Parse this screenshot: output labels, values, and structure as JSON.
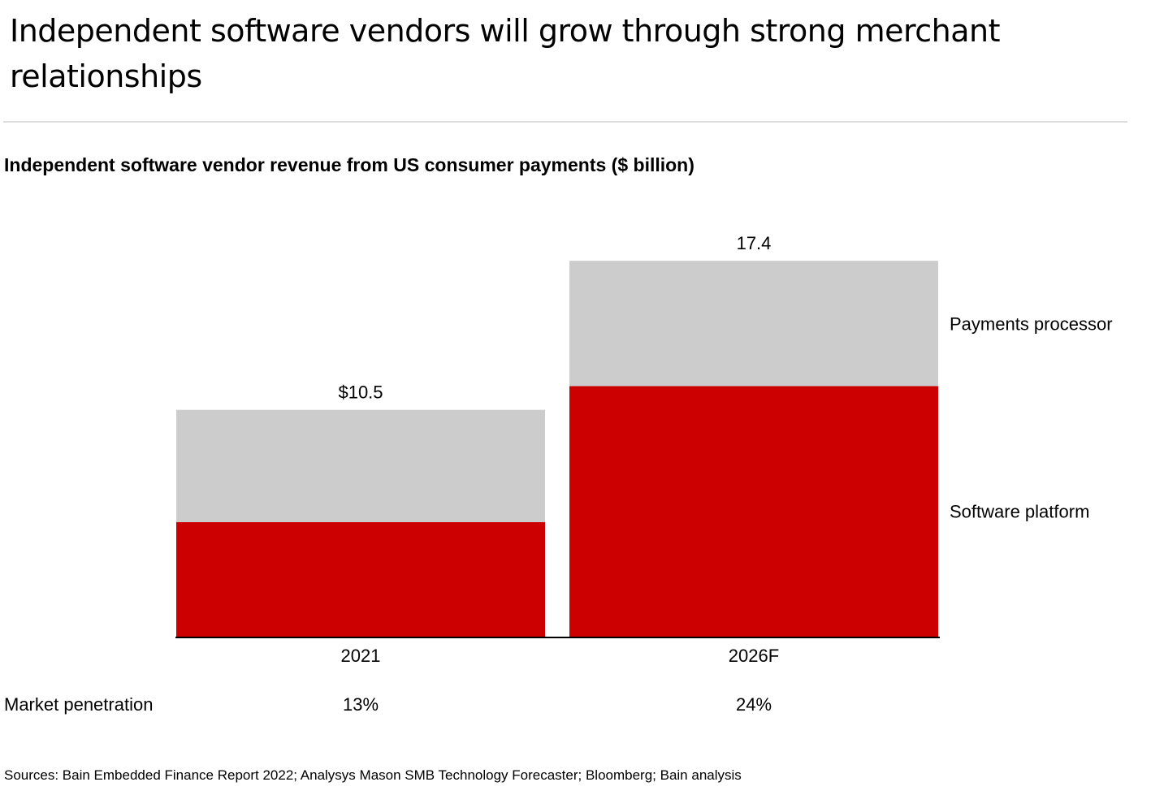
{
  "header": {
    "title": "Independent software vendors will grow through strong merchant relationships"
  },
  "chart_data": {
    "type": "bar",
    "stacked": true,
    "title": "Independent software vendor revenue from US consumer payments ($ billion)",
    "categories": [
      "2021",
      "2026F"
    ],
    "series": [
      {
        "name": "Software platform",
        "values": [
          5.3,
          11.6
        ],
        "color": "#cc0000"
      },
      {
        "name": "Payments processor",
        "values": [
          5.2,
          5.8
        ],
        "color": "#cccccc"
      }
    ],
    "totals_labels": [
      "$10.5",
      "17.4"
    ],
    "totals": [
      10.5,
      17.4
    ],
    "ylim": [
      0,
      18
    ],
    "grid": false,
    "legend": "right (inline labels)",
    "row_label": "Market penetration",
    "row_values": [
      "13%",
      "24%"
    ]
  },
  "footer": {
    "sources": "Sources: Bain Embedded Finance Report 2022; Analysys Mason SMB Technology Forecaster; Bloomberg; Bain analysis"
  }
}
